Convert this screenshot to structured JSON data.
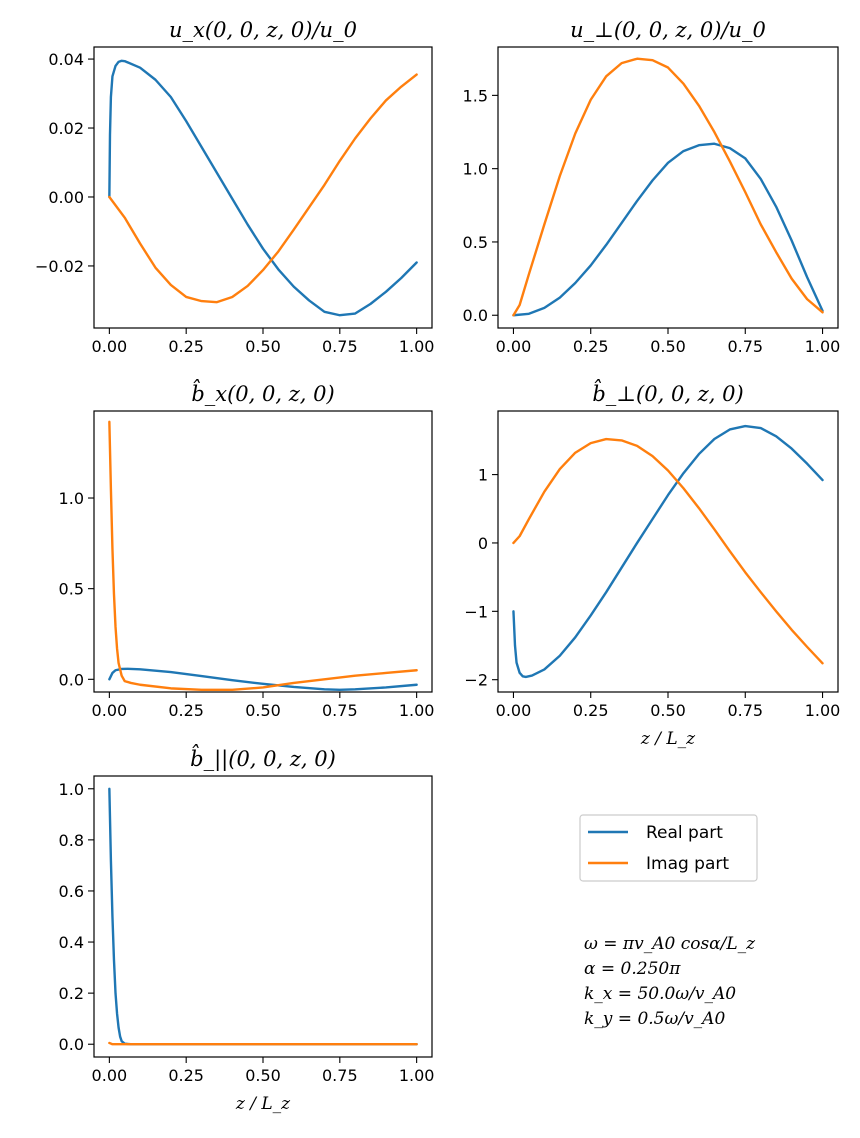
{
  "colors": {
    "real": "#1f77b4",
    "imag": "#ff7f0e"
  },
  "legend": {
    "placement": "right-middle",
    "entries": [
      "Real part",
      "Imag part"
    ]
  },
  "annotations": [
    "ω = πv_A0 cosα/L_z",
    "α = 0.250π",
    "k_x = 50.0ω/v_A0",
    "k_y = 0.5ω/v_A0"
  ],
  "chart_data": [
    {
      "type": "line",
      "title": "u_x(0, 0, z, 0)/u_0",
      "xlabel": "",
      "ylabel": "",
      "xlim": [
        -0.05,
        1.05
      ],
      "ylim": [
        -0.038,
        0.0435
      ],
      "xticks": [
        "0.00",
        "0.25",
        "0.50",
        "0.75",
        "1.00"
      ],
      "xtick_values": [
        0,
        0.25,
        0.5,
        0.75,
        1.0
      ],
      "yticks": [
        "0.04",
        "0.02",
        "0.00",
        "−0.02"
      ],
      "ytick_values": [
        0.04,
        0.02,
        0.0,
        -0.02
      ],
      "series": [
        {
          "name": "Real part",
          "x": [
            0,
            0.002,
            0.005,
            0.01,
            0.02,
            0.03,
            0.04,
            0.05,
            0.1,
            0.15,
            0.2,
            0.25,
            0.3,
            0.35,
            0.4,
            0.45,
            0.5,
            0.55,
            0.6,
            0.65,
            0.7,
            0.75,
            0.8,
            0.85,
            0.9,
            0.95,
            1.0
          ],
          "y": [
            0.0,
            0.018,
            0.029,
            0.035,
            0.038,
            0.0392,
            0.0395,
            0.0394,
            0.0375,
            0.034,
            0.029,
            0.022,
            0.0145,
            0.007,
            -0.0005,
            -0.008,
            -0.015,
            -0.021,
            -0.026,
            -0.03,
            -0.0333,
            -0.0343,
            -0.0338,
            -0.031,
            -0.0275,
            -0.0235,
            -0.019
          ]
        },
        {
          "name": "Imag part",
          "x": [
            0,
            0.05,
            0.1,
            0.15,
            0.2,
            0.25,
            0.3,
            0.35,
            0.4,
            0.45,
            0.5,
            0.55,
            0.6,
            0.65,
            0.7,
            0.75,
            0.8,
            0.85,
            0.9,
            0.95,
            1.0
          ],
          "y": [
            0.0,
            -0.006,
            -0.0135,
            -0.0205,
            -0.0255,
            -0.029,
            -0.0302,
            -0.0305,
            -0.029,
            -0.0258,
            -0.0212,
            -0.0158,
            -0.0095,
            -0.003,
            0.0035,
            0.0105,
            0.017,
            0.0228,
            0.028,
            0.032,
            0.0355
          ]
        }
      ]
    },
    {
      "type": "line",
      "title": "u_⊥(0, 0, z, 0)/u_0",
      "xlabel": "",
      "ylabel": "",
      "xlim": [
        -0.05,
        1.05
      ],
      "ylim": [
        -0.087,
        1.83
      ],
      "xticks": [
        "0.00",
        "0.25",
        "0.50",
        "0.75",
        "1.00"
      ],
      "xtick_values": [
        0,
        0.25,
        0.5,
        0.75,
        1.0
      ],
      "yticks": [
        "1.5",
        "1.0",
        "0.5",
        "0.0"
      ],
      "ytick_values": [
        1.5,
        1.0,
        0.5,
        0.0
      ],
      "series": [
        {
          "name": "Real part",
          "x": [
            0,
            0.05,
            0.1,
            0.15,
            0.2,
            0.25,
            0.3,
            0.35,
            0.4,
            0.45,
            0.5,
            0.55,
            0.6,
            0.65,
            0.7,
            0.75,
            0.8,
            0.85,
            0.9,
            0.95,
            1.0
          ],
          "y": [
            0.0,
            0.01,
            0.05,
            0.12,
            0.22,
            0.34,
            0.48,
            0.63,
            0.78,
            0.92,
            1.04,
            1.12,
            1.16,
            1.17,
            1.14,
            1.07,
            0.93,
            0.74,
            0.51,
            0.26,
            0.03
          ]
        },
        {
          "name": "Imag part",
          "x": [
            0,
            0.02,
            0.05,
            0.1,
            0.15,
            0.2,
            0.25,
            0.3,
            0.35,
            0.4,
            0.45,
            0.5,
            0.55,
            0.6,
            0.65,
            0.7,
            0.75,
            0.8,
            0.85,
            0.9,
            0.95,
            1.0
          ],
          "y": [
            0.0,
            0.07,
            0.28,
            0.62,
            0.95,
            1.24,
            1.47,
            1.63,
            1.72,
            1.75,
            1.74,
            1.69,
            1.58,
            1.43,
            1.25,
            1.05,
            0.84,
            0.62,
            0.43,
            0.25,
            0.11,
            0.02
          ]
        }
      ]
    },
    {
      "type": "line",
      "title": "b̂_x(0, 0, z, 0)",
      "xlabel": "",
      "ylabel": "",
      "xlim": [
        -0.05,
        1.05
      ],
      "ylim": [
        -0.07,
        1.48
      ],
      "xticks": [
        "0.00",
        "0.25",
        "0.50",
        "0.75",
        "1.00"
      ],
      "xtick_values": [
        0,
        0.25,
        0.5,
        0.75,
        1.0
      ],
      "yticks": [
        "1.0",
        "0.5",
        "0.0"
      ],
      "ytick_values": [
        1.0,
        0.5,
        0.0
      ],
      "series": [
        {
          "name": "Real part",
          "x": [
            0,
            0.01,
            0.02,
            0.04,
            0.06,
            0.1,
            0.2,
            0.3,
            0.4,
            0.5,
            0.6,
            0.7,
            0.75,
            0.8,
            0.9,
            1.0
          ],
          "y": [
            0.0,
            0.035,
            0.05,
            0.057,
            0.058,
            0.055,
            0.04,
            0.018,
            -0.005,
            -0.025,
            -0.042,
            -0.055,
            -0.058,
            -0.055,
            -0.045,
            -0.03
          ]
        },
        {
          "name": "Imag part",
          "x": [
            0,
            0.005,
            0.01,
            0.015,
            0.02,
            0.025,
            0.03,
            0.04,
            0.05,
            0.07,
            0.1,
            0.2,
            0.3,
            0.4,
            0.5,
            0.6,
            0.7,
            0.8,
            0.9,
            1.0
          ],
          "y": [
            1.42,
            1.05,
            0.72,
            0.47,
            0.29,
            0.17,
            0.09,
            0.02,
            -0.01,
            -0.02,
            -0.03,
            -0.05,
            -0.058,
            -0.058,
            -0.045,
            -0.02,
            0.0,
            0.02,
            0.035,
            0.05
          ]
        }
      ]
    },
    {
      "type": "line",
      "title": "b̂_⊥(0, 0, z, 0)",
      "xlabel": "z / L_z",
      "ylabel": "",
      "xlim": [
        -0.05,
        1.05
      ],
      "ylim": [
        -2.18,
        1.93
      ],
      "xticks": [
        "0.00",
        "0.25",
        "0.50",
        "0.75",
        "1.00"
      ],
      "xtick_values": [
        0,
        0.25,
        0.5,
        0.75,
        1.0
      ],
      "yticks": [
        "1",
        "0",
        "−1",
        "−2"
      ],
      "ytick_values": [
        1,
        0,
        -1,
        -2
      ],
      "series": [
        {
          "name": "Real part",
          "x": [
            0,
            0.005,
            0.01,
            0.02,
            0.03,
            0.04,
            0.06,
            0.1,
            0.15,
            0.2,
            0.25,
            0.3,
            0.35,
            0.4,
            0.45,
            0.5,
            0.55,
            0.6,
            0.65,
            0.7,
            0.75,
            0.8,
            0.85,
            0.9,
            0.95,
            1.0
          ],
          "y": [
            -1.0,
            -1.5,
            -1.75,
            -1.9,
            -1.95,
            -1.96,
            -1.94,
            -1.85,
            -1.65,
            -1.38,
            -1.06,
            -0.72,
            -0.36,
            0.0,
            0.35,
            0.7,
            1.02,
            1.3,
            1.52,
            1.66,
            1.71,
            1.68,
            1.56,
            1.38,
            1.16,
            0.92
          ]
        },
        {
          "name": "Imag part",
          "x": [
            0,
            0.02,
            0.05,
            0.1,
            0.15,
            0.2,
            0.25,
            0.3,
            0.35,
            0.4,
            0.45,
            0.5,
            0.55,
            0.6,
            0.65,
            0.7,
            0.75,
            0.8,
            0.85,
            0.9,
            0.95,
            1.0
          ],
          "y": [
            0.0,
            0.1,
            0.35,
            0.75,
            1.08,
            1.32,
            1.46,
            1.52,
            1.5,
            1.42,
            1.27,
            1.06,
            0.8,
            0.51,
            0.2,
            -0.12,
            -0.43,
            -0.72,
            -1.0,
            -1.27,
            -1.52,
            -1.76
          ]
        }
      ]
    },
    {
      "type": "line",
      "title": "b̂_||(0, 0, z, 0)",
      "xlabel": "z / L_z",
      "ylabel": "",
      "xlim": [
        -0.05,
        1.05
      ],
      "ylim": [
        -0.05,
        1.05
      ],
      "xticks": [
        "0.00",
        "0.25",
        "0.50",
        "0.75",
        "1.00"
      ],
      "xtick_values": [
        0,
        0.25,
        0.5,
        0.75,
        1.0
      ],
      "yticks": [
        "1.0",
        "0.8",
        "0.6",
        "0.4",
        "0.2",
        "0.0"
      ],
      "ytick_values": [
        1.0,
        0.8,
        0.6,
        0.4,
        0.2,
        0.0
      ],
      "series": [
        {
          "name": "Real part",
          "x": [
            0,
            0.005,
            0.01,
            0.015,
            0.02,
            0.025,
            0.03,
            0.035,
            0.04,
            0.05,
            0.07,
            0.1,
            0.5,
            1.0
          ],
          "y": [
            1.0,
            0.72,
            0.5,
            0.33,
            0.2,
            0.12,
            0.065,
            0.03,
            0.012,
            0.002,
            0.0,
            0.0,
            0.0,
            0.0
          ]
        },
        {
          "name": "Imag part",
          "x": [
            0,
            0.01,
            0.03,
            0.1,
            0.5,
            1.0
          ],
          "y": [
            0.005,
            0.0,
            0.0,
            0.0,
            0.0,
            0.0
          ]
        }
      ]
    }
  ]
}
